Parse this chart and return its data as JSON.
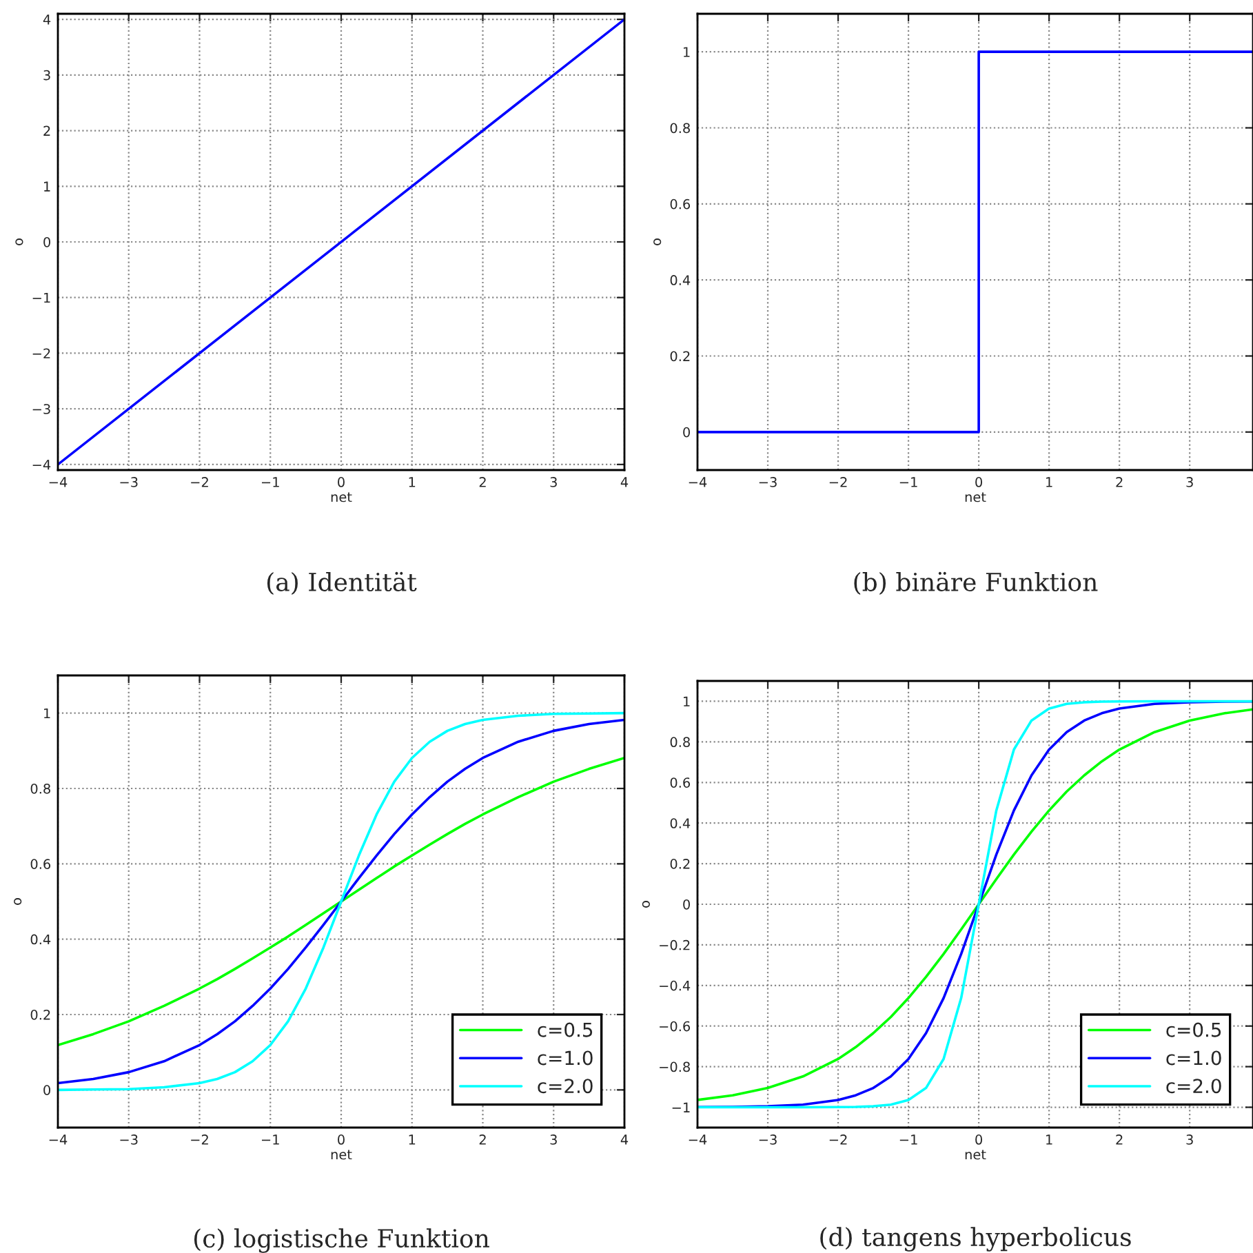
{
  "chart_data": [
    {
      "type": "line",
      "xlabel": "net",
      "ylabel": "o",
      "annotations": [
        "(a) Identität"
      ],
      "x": [
        -4,
        4
      ],
      "values": [
        -4,
        4
      ],
      "color": "#0000ff",
      "xlim": [
        -4,
        4
      ],
      "ylim": [
        -4.1,
        4.1
      ],
      "xticks": [
        -4,
        -3,
        -2,
        -1,
        0,
        1,
        2,
        3,
        4
      ],
      "yticks": [
        -4,
        -3,
        -2,
        -1,
        0,
        1,
        2,
        3,
        4
      ],
      "grid": true,
      "line_style": "solid"
    },
    {
      "type": "line",
      "xlabel": "net",
      "ylabel": "o",
      "annotations": [
        "(b) binäre Funktion"
      ],
      "x": [
        -4,
        0,
        0,
        3.9
      ],
      "values": [
        0,
        0,
        1,
        1
      ],
      "color": "#0000ff",
      "xlim": [
        -4,
        3.9
      ],
      "ylim": [
        -0.1,
        1.1
      ],
      "xticks": [
        -4,
        -3,
        -2,
        -1,
        0,
        1,
        2,
        3
      ],
      "yticks": [
        0,
        0.2,
        0.4,
        0.6,
        0.8,
        1
      ],
      "grid": true,
      "line_style": "solid"
    },
    {
      "type": "line",
      "xlabel": "net",
      "ylabel": "o",
      "annotations": [
        "(c) logistische Funktion"
      ],
      "x": [
        -4,
        -3.5,
        -3,
        -2.5,
        -2,
        -1.75,
        -1.5,
        -1.25,
        -1,
        -0.75,
        -0.5,
        -0.25,
        0,
        0.25,
        0.5,
        0.75,
        1,
        1.25,
        1.5,
        1.75,
        2,
        2.5,
        3,
        3.5,
        4
      ],
      "xlim": [
        -4,
        4
      ],
      "ylim": [
        -0.1,
        1.1
      ],
      "xticks": [
        -4,
        -3,
        -2,
        -1,
        0,
        1,
        2,
        3,
        4
      ],
      "yticks": [
        0,
        0.2,
        0.4,
        0.6,
        0.8,
        1
      ],
      "grid": true,
      "legend": "bottom right",
      "line_style": "solid",
      "series": [
        {
          "name": "c=0.5",
          "color": "#00ff00",
          "values": [
            0.119,
            0.148,
            0.182,
            0.223,
            0.269,
            0.294,
            0.321,
            0.349,
            0.378,
            0.407,
            0.438,
            0.469,
            0.5,
            0.531,
            0.562,
            0.593,
            0.622,
            0.651,
            0.679,
            0.706,
            0.731,
            0.777,
            0.818,
            0.852,
            0.881
          ]
        },
        {
          "name": "c=1.0",
          "color": "#0000ff",
          "values": [
            0.018,
            0.029,
            0.047,
            0.076,
            0.119,
            0.148,
            0.182,
            0.223,
            0.269,
            0.321,
            0.378,
            0.438,
            0.5,
            0.562,
            0.622,
            0.679,
            0.731,
            0.777,
            0.818,
            0.852,
            0.881,
            0.924,
            0.953,
            0.971,
            0.982
          ]
        },
        {
          "name": "c=2.0",
          "color": "#00ffff",
          "values": [
            0.0,
            0.001,
            0.002,
            0.007,
            0.018,
            0.029,
            0.047,
            0.076,
            0.119,
            0.182,
            0.269,
            0.378,
            0.5,
            0.622,
            0.731,
            0.818,
            0.881,
            0.924,
            0.953,
            0.971,
            0.982,
            0.993,
            0.998,
            0.999,
            1.0
          ]
        }
      ]
    },
    {
      "type": "line",
      "xlabel": "net",
      "ylabel": "o",
      "annotations": [
        "(d) tangens hyperbolicus"
      ],
      "x": [
        -4,
        -3.5,
        -3,
        -2.5,
        -2,
        -1.75,
        -1.5,
        -1.25,
        -1,
        -0.75,
        -0.5,
        -0.25,
        0,
        0.25,
        0.5,
        0.75,
        1,
        1.25,
        1.5,
        1.75,
        2,
        2.5,
        3,
        3.5,
        3.9
      ],
      "xlim": [
        -4,
        3.9
      ],
      "ylim": [
        -1.1,
        1.1
      ],
      "xticks": [
        -4,
        -3,
        -2,
        -1,
        0,
        1,
        2,
        3
      ],
      "yticks": [
        -1,
        -0.8,
        -0.6,
        -0.4,
        -0.2,
        0,
        0.2,
        0.4,
        0.6,
        0.8,
        1
      ],
      "grid": true,
      "legend": "bottom right",
      "line_style": "solid",
      "series": [
        {
          "name": "c=0.5",
          "color": "#00ff00",
          "values": [
            -0.964,
            -0.941,
            -0.905,
            -0.848,
            -0.762,
            -0.704,
            -0.635,
            -0.555,
            -0.462,
            -0.358,
            -0.245,
            -0.124,
            0,
            0.124,
            0.245,
            0.358,
            0.462,
            0.555,
            0.635,
            0.704,
            0.762,
            0.848,
            0.905,
            0.941,
            0.96
          ]
        },
        {
          "name": "c=1.0",
          "color": "#0000ff",
          "values": [
            -0.999,
            -0.998,
            -0.995,
            -0.987,
            -0.964,
            -0.941,
            -0.905,
            -0.848,
            -0.762,
            -0.635,
            -0.462,
            -0.245,
            0,
            0.245,
            0.462,
            0.635,
            0.762,
            0.848,
            0.905,
            0.941,
            0.964,
            0.987,
            0.995,
            0.998,
            0.999
          ]
        },
        {
          "name": "c=2.0",
          "color": "#00ffff",
          "values": [
            -1.0,
            -1.0,
            -1.0,
            -1.0,
            -0.999,
            -0.998,
            -0.995,
            -0.987,
            -0.964,
            -0.905,
            -0.762,
            -0.462,
            0,
            0.462,
            0.762,
            0.905,
            0.964,
            0.987,
            0.995,
            0.998,
            0.999,
            1.0,
            1.0,
            1.0,
            1.0
          ]
        }
      ]
    }
  ]
}
